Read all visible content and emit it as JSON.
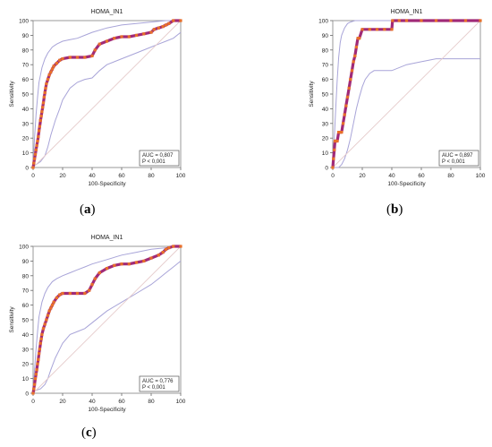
{
  "figures": [
    {
      "caption_open": "(",
      "caption_letter": "a",
      "caption_close": ")"
    },
    {
      "caption_open": "(",
      "caption_letter": "b",
      "caption_close": ")"
    },
    {
      "caption_open": "(",
      "caption_letter": "c",
      "caption_close": ")"
    }
  ],
  "colors": {
    "curve": "#a02a78",
    "curve_marker": "#e8702a",
    "confidence_band": "#a8a4d8",
    "diagonal": "#e6cccc",
    "frame": "#9a9a9a"
  },
  "chart_data": [
    {
      "type": "line",
      "title": "HOMA_IN1",
      "xlabel": "100-Specificity",
      "ylabel": "Sensitivity",
      "xlim": [
        0,
        100
      ],
      "ylim": [
        0,
        100
      ],
      "xticks": [
        "0",
        "20",
        "40",
        "60",
        "80",
        "100"
      ],
      "yticks": [
        "0",
        "10",
        "20",
        "30",
        "40",
        "50",
        "60",
        "70",
        "80",
        "90",
        "100"
      ],
      "annotation": [
        "AUC = 0,807",
        "P < 0,001"
      ],
      "grid": false,
      "series": [
        {
          "role": "roc",
          "x": [
            0,
            0.5,
            1,
            1.5,
            2,
            2.5,
            3,
            3.5,
            4,
            4.5,
            5,
            5.5,
            6,
            6.5,
            7,
            7.5,
            8,
            8.5,
            9,
            10,
            11,
            12,
            13,
            14,
            16,
            18,
            20,
            25,
            30,
            35,
            40,
            42,
            45,
            50,
            55,
            60,
            65,
            70,
            75,
            80,
            82,
            85,
            88,
            90,
            92,
            95,
            100
          ],
          "y": [
            0,
            3,
            6,
            9,
            12,
            15,
            18,
            21,
            25,
            28,
            32,
            35,
            38,
            41,
            44,
            48,
            51,
            54,
            57,
            60,
            63,
            65,
            67,
            69,
            71,
            73,
            74,
            75,
            75,
            75,
            76,
            80,
            84,
            86,
            88,
            89,
            89,
            90,
            91,
            92,
            94,
            95,
            96,
            97,
            98,
            100,
            100
          ]
        },
        {
          "role": "ci_upper",
          "x": [
            0,
            1,
            2,
            3,
            4,
            6,
            8,
            10,
            13,
            16,
            20,
            25,
            30,
            35,
            40,
            50,
            60,
            70,
            80,
            90,
            100
          ],
          "y": [
            0,
            20,
            36,
            48,
            58,
            68,
            74,
            78,
            82,
            84,
            86,
            87,
            88,
            90,
            92,
            95,
            97,
            98,
            99,
            100,
            100
          ]
        },
        {
          "role": "ci_lower",
          "x": [
            0,
            2,
            5,
            8,
            10,
            12,
            15,
            18,
            20,
            25,
            30,
            35,
            40,
            45,
            50,
            60,
            70,
            80,
            85,
            90,
            95,
            100
          ],
          "y": [
            0,
            2,
            4,
            8,
            14,
            22,
            32,
            40,
            46,
            54,
            58,
            60,
            61,
            66,
            70,
            74,
            78,
            82,
            84,
            86,
            88,
            92
          ]
        },
        {
          "role": "reference",
          "x": [
            0,
            100
          ],
          "y": [
            0,
            100
          ]
        }
      ]
    },
    {
      "type": "line",
      "title": "HOMA_IN1",
      "xlabel": "100-Specificity",
      "ylabel": "Sensitivity",
      "xlim": [
        0,
        100
      ],
      "ylim": [
        0,
        100
      ],
      "xticks": [
        "0",
        "20",
        "40",
        "60",
        "80",
        "100"
      ],
      "yticks": [
        "0",
        "10",
        "20",
        "30",
        "40",
        "50",
        "60",
        "70",
        "80",
        "90",
        "100"
      ],
      "annotation": [
        "AUC = 0,897",
        "P < 0,001"
      ],
      "grid": false,
      "series": [
        {
          "role": "roc",
          "x": [
            0,
            0.5,
            1,
            1.5,
            2,
            3,
            4,
            5,
            6,
            7,
            8,
            9,
            10,
            11,
            12,
            13,
            14,
            15,
            16,
            17,
            18,
            20,
            25,
            30,
            35,
            40,
            40.5,
            45,
            50,
            60,
            70,
            80,
            90,
            100
          ],
          "y": [
            0,
            6,
            12,
            18,
            18,
            18,
            24,
            24,
            24,
            30,
            36,
            42,
            48,
            54,
            60,
            66,
            72,
            76,
            82,
            88,
            88,
            94,
            94,
            94,
            94,
            94,
            100,
            100,
            100,
            100,
            100,
            100,
            100,
            100
          ]
        },
        {
          "role": "ci_upper",
          "x": [
            0,
            1,
            2,
            3,
            4,
            5,
            6,
            8,
            10,
            12,
            15,
            20,
            25,
            30,
            35,
            40,
            50,
            60,
            70,
            80,
            90,
            100
          ],
          "y": [
            0,
            20,
            40,
            60,
            75,
            85,
            90,
            95,
            98,
            99,
            100,
            100,
            100,
            100,
            100,
            100,
            100,
            100,
            100,
            100,
            100,
            100
          ]
        },
        {
          "role": "ci_lower",
          "x": [
            0,
            2,
            4,
            6,
            8,
            10,
            12,
            14,
            16,
            18,
            20,
            22,
            25,
            28,
            30,
            35,
            40,
            50,
            60,
            70,
            80,
            90,
            100
          ],
          "y": [
            0,
            0,
            0,
            2,
            6,
            12,
            20,
            30,
            40,
            48,
            55,
            60,
            64,
            66,
            66,
            66,
            66,
            70,
            72,
            74,
            74,
            74,
            74
          ]
        },
        {
          "role": "reference",
          "x": [
            0,
            100
          ],
          "y": [
            0,
            100
          ]
        }
      ]
    },
    {
      "type": "line",
      "title": "HOMA_IN1",
      "xlabel": "100-Specificity",
      "ylabel": "Sensitivity",
      "xlim": [
        0,
        100
      ],
      "ylim": [
        0,
        100
      ],
      "xticks": [
        "0",
        "20",
        "40",
        "60",
        "80",
        "100"
      ],
      "yticks": [
        "0",
        "10",
        "20",
        "30",
        "40",
        "50",
        "60",
        "70",
        "80",
        "90",
        "100"
      ],
      "annotation": [
        "AUC = 0,776",
        "P < 0,001"
      ],
      "grid": false,
      "series": [
        {
          "role": "roc",
          "x": [
            0,
            0.5,
            1,
            1.5,
            2,
            2.5,
            3,
            3.5,
            4,
            4.5,
            5,
            5.5,
            6,
            7,
            8,
            9,
            10,
            11,
            12,
            13,
            14,
            16,
            18,
            20,
            25,
            30,
            35,
            38,
            40,
            42,
            45,
            50,
            55,
            60,
            65,
            70,
            75,
            80,
            85,
            88,
            90,
            92,
            95,
            100
          ],
          "y": [
            0,
            3,
            6,
            10,
            13,
            16,
            20,
            23,
            27,
            30,
            34,
            37,
            40,
            44,
            47,
            50,
            53,
            56,
            58,
            60,
            62,
            65,
            67,
            68,
            68,
            68,
            68,
            70,
            74,
            78,
            82,
            85,
            87,
            88,
            88,
            89,
            90,
            92,
            94,
            96,
            98,
            99,
            100,
            100
          ]
        },
        {
          "role": "ci_upper",
          "x": [
            0,
            1,
            2,
            3,
            4,
            6,
            8,
            10,
            13,
            16,
            20,
            25,
            30,
            35,
            40,
            50,
            60,
            70,
            80,
            90,
            100
          ],
          "y": [
            0,
            16,
            30,
            42,
            52,
            62,
            68,
            72,
            76,
            78,
            80,
            82,
            84,
            86,
            88,
            91,
            94,
            96,
            98,
            99,
            100
          ]
        },
        {
          "role": "ci_lower",
          "x": [
            0,
            2,
            5,
            8,
            10,
            12,
            15,
            18,
            20,
            25,
            30,
            35,
            40,
            45,
            50,
            60,
            70,
            80,
            85,
            90,
            95,
            100
          ],
          "y": [
            0,
            2,
            3,
            6,
            10,
            16,
            24,
            30,
            34,
            40,
            42,
            44,
            48,
            52,
            56,
            62,
            68,
            74,
            78,
            82,
            86,
            90
          ]
        },
        {
          "role": "reference",
          "x": [
            0,
            100
          ],
          "y": [
            0,
            100
          ]
        }
      ]
    }
  ]
}
